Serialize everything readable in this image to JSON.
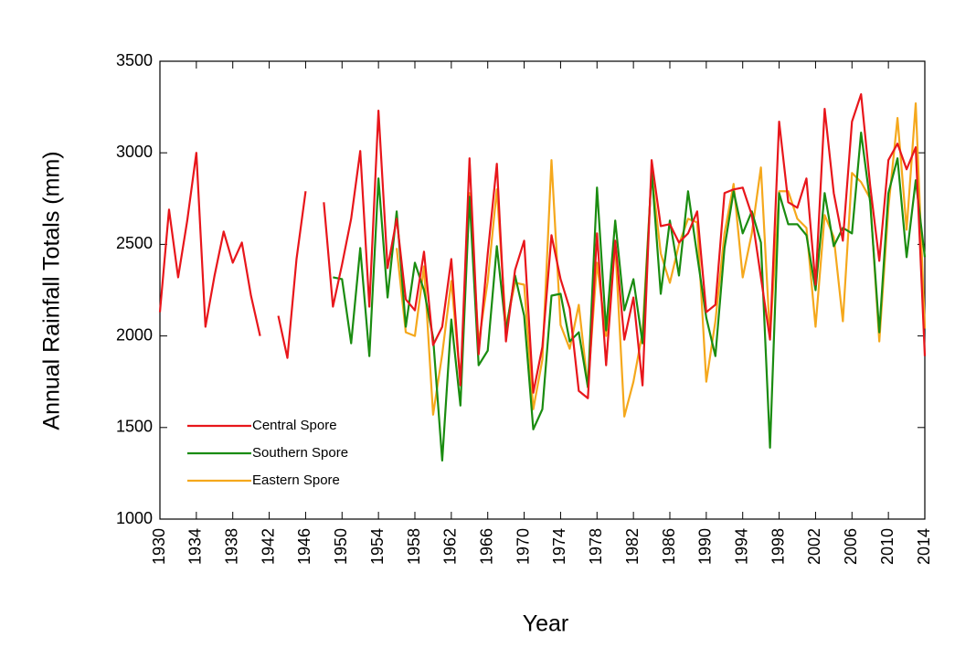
{
  "chart_data": {
    "type": "line",
    "xlabel": "Year",
    "ylabel": "Annual Rainfall Totals (mm)",
    "x": [
      1930,
      1931,
      1932,
      1933,
      1934,
      1935,
      1936,
      1937,
      1938,
      1939,
      1940,
      1941,
      1942,
      1943,
      1944,
      1945,
      1946,
      1947,
      1948,
      1949,
      1950,
      1951,
      1952,
      1953,
      1954,
      1955,
      1956,
      1957,
      1958,
      1959,
      1960,
      1961,
      1962,
      1963,
      1964,
      1965,
      1966,
      1967,
      1968,
      1969,
      1970,
      1971,
      1972,
      1973,
      1974,
      1975,
      1976,
      1977,
      1978,
      1979,
      1980,
      1981,
      1982,
      1983,
      1984,
      1985,
      1986,
      1987,
      1988,
      1989,
      1990,
      1991,
      1992,
      1993,
      1994,
      1995,
      1996,
      1997,
      1998,
      1999,
      2000,
      2001,
      2002,
      2003,
      2004,
      2005,
      2006,
      2007,
      2008,
      2009,
      2010,
      2011,
      2012,
      2013,
      2014
    ],
    "series": [
      {
        "name": "Central Spore",
        "color": "#e8161b",
        "values": [
          2130,
          2690,
          2320,
          2630,
          3000,
          2050,
          2330,
          2570,
          2400,
          2510,
          2220,
          2000,
          null,
          2110,
          1880,
          2420,
          2790,
          null,
          2730,
          2160,
          2390,
          2640,
          3010,
          2160,
          3230,
          2370,
          2640,
          2200,
          2140,
          2460,
          1950,
          2050,
          2420,
          1730,
          2970,
          1900,
          2450,
          2940,
          1970,
          2360,
          2520,
          1690,
          1940,
          2550,
          2310,
          2150,
          1700,
          1660,
          2560,
          1840,
          2520,
          1980,
          2210,
          1730,
          2960,
          2600,
          2610,
          2510,
          2560,
          2680,
          2130,
          2170,
          2780,
          2800,
          2810,
          2660,
          2320,
          1980,
          3170,
          2730,
          2700,
          2860,
          2280,
          3240,
          2780,
          2520,
          3170,
          3320,
          2820,
          2410,
          2960,
          3050,
          2910,
          3030,
          1890
        ]
      },
      {
        "name": "Southern Spore",
        "color": "#1a8c10",
        "values": [
          null,
          null,
          null,
          null,
          null,
          null,
          null,
          null,
          null,
          null,
          null,
          null,
          null,
          null,
          null,
          null,
          null,
          null,
          null,
          2320,
          2310,
          1960,
          2480,
          1890,
          2860,
          2210,
          2680,
          2050,
          2400,
          2250,
          1990,
          1320,
          2090,
          1620,
          2760,
          1840,
          1920,
          2490,
          2030,
          2330,
          2110,
          1490,
          1600,
          2220,
          2230,
          1970,
          2020,
          1720,
          2810,
          2030,
          2630,
          2140,
          2310,
          1960,
          2900,
          2230,
          2630,
          2330,
          2790,
          2440,
          2100,
          1890,
          2480,
          2790,
          2560,
          2680,
          2510,
          1390,
          2780,
          2610,
          2610,
          2550,
          2250,
          2780,
          2490,
          2590,
          2560,
          3110,
          2730,
          2020,
          2780,
          2970,
          2430,
          2850,
          2430
        ]
      },
      {
        "name": "Eastern Spore",
        "color": "#f5a81c",
        "values": [
          null,
          null,
          null,
          null,
          null,
          null,
          null,
          null,
          null,
          null,
          null,
          null,
          null,
          null,
          null,
          null,
          null,
          null,
          null,
          null,
          null,
          null,
          null,
          null,
          null,
          null,
          2480,
          2020,
          2000,
          2380,
          1570,
          1900,
          2300,
          1750,
          2780,
          1960,
          2300,
          2800,
          2050,
          2290,
          2280,
          1600,
          1870,
          2960,
          2060,
          1930,
          2170,
          1720,
          2400,
          2000,
          2500,
          1560,
          1750,
          2020,
          2890,
          2450,
          2290,
          2500,
          2640,
          2620,
          1750,
          2080,
          2560,
          2830,
          2320,
          2560,
          2920,
          1990,
          2790,
          2790,
          2640,
          2590,
          2050,
          2660,
          2540,
          2080,
          2890,
          2840,
          2750,
          1970,
          2700,
          3190,
          2580,
          3270,
          2040
        ]
      }
    ],
    "xlim": [
      1930,
      2014
    ],
    "xticks": [
      1930,
      1934,
      1938,
      1942,
      1946,
      1950,
      1954,
      1958,
      1962,
      1966,
      1970,
      1974,
      1978,
      1982,
      1986,
      1990,
      1994,
      1998,
      2002,
      2006,
      2010,
      2014
    ],
    "ylim": [
      1000,
      3500
    ],
    "yticks": [
      1000,
      1500,
      2000,
      2500,
      3000,
      3500
    ],
    "legend": "lower-left"
  }
}
